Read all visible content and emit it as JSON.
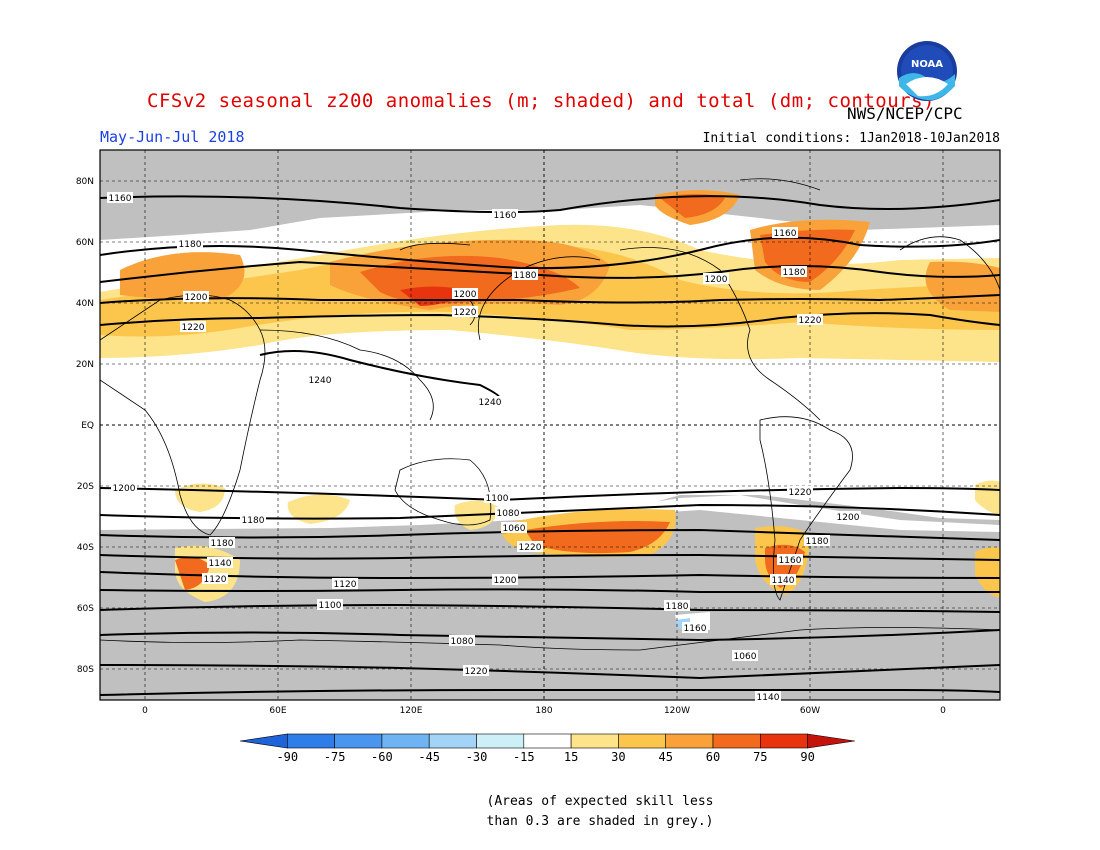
{
  "header": {
    "title": "CFSv2 seasonal z200 anomalies (m; shaded) and total (dm; contours)",
    "agency": "NWS/NCEP/CPC",
    "season": "May-Jun-Jul 2018",
    "initial_conditions": "Initial conditions: 1Jan2018-10Jan2018"
  },
  "logo": {
    "name": "noaa-logo",
    "text": "NOAA"
  },
  "map": {
    "lat_labels": [
      "80N",
      "60N",
      "40N",
      "20N",
      "EQ",
      "20S",
      "40S",
      "60S",
      "80S"
    ],
    "lon_labels": [
      "0",
      "60E",
      "120E",
      "180",
      "120W",
      "60W",
      "0"
    ],
    "contour_labels": [
      "1160",
      "1160",
      "1180",
      "1200",
      "1220",
      "1240",
      "1240",
      "1180",
      "1200",
      "1220",
      "1160",
      "1180",
      "1200",
      "1220",
      "1220",
      "1200",
      "1180",
      "1160",
      "1140",
      "1120",
      "1100",
      "1080",
      "1060",
      "1220",
      "1200",
      "1180",
      "1180",
      "1140",
      "1120",
      "1100",
      "1080",
      "1060",
      "1220",
      "1200",
      "1180",
      "1160",
      "1140"
    ]
  },
  "colorbar": {
    "labels": [
      "-90",
      "-75",
      "-60",
      "-45",
      "-30",
      "-15",
      "15",
      "30",
      "45",
      "60",
      "75",
      "90"
    ],
    "colors": [
      "#1e64d8",
      "#2f7de8",
      "#4a96ee",
      "#6fb3f3",
      "#a3d3f6",
      "#cdeff7",
      "#ffffff",
      "#fde38a",
      "#fcc64c",
      "#f9a23a",
      "#f26a1e",
      "#e8330f",
      "#c4120c"
    ]
  },
  "footnote": {
    "line1": "(Areas of expected skill less",
    "line2": "than 0.3 are shaded in grey.)"
  }
}
